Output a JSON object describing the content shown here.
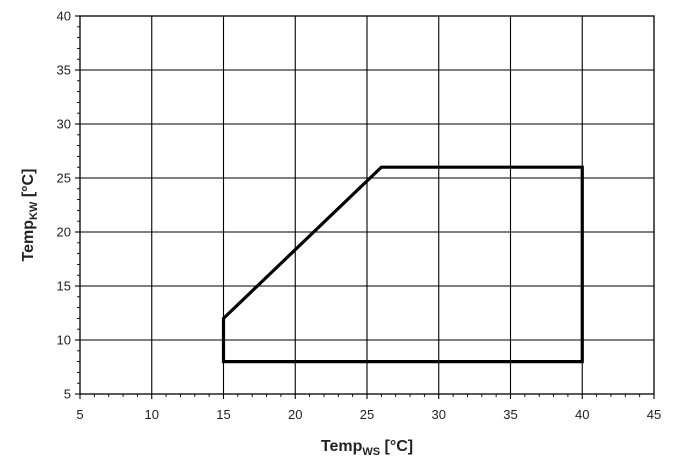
{
  "chart_data": {
    "type": "line",
    "title": "",
    "xlabel": {
      "main": "Temp",
      "sub": "WS",
      "unit": " [°C]"
    },
    "ylabel": {
      "main": "Temp",
      "sub": "KW",
      "unit": " [°C]"
    },
    "xlim": [
      5,
      45
    ],
    "ylim": [
      5,
      40
    ],
    "xticks": [
      5,
      10,
      15,
      20,
      25,
      30,
      35,
      40,
      45
    ],
    "yticks": [
      5,
      10,
      15,
      20,
      25,
      30,
      35,
      40
    ],
    "grid": true,
    "legend": "none",
    "series": [
      {
        "closed": true,
        "color": "#000000",
        "points": [
          {
            "x": 15,
            "y": 8
          },
          {
            "x": 15,
            "y": 12
          },
          {
            "x": 26,
            "y": 26
          },
          {
            "x": 40,
            "y": 26
          },
          {
            "x": 40,
            "y": 8
          }
        ]
      }
    ]
  }
}
